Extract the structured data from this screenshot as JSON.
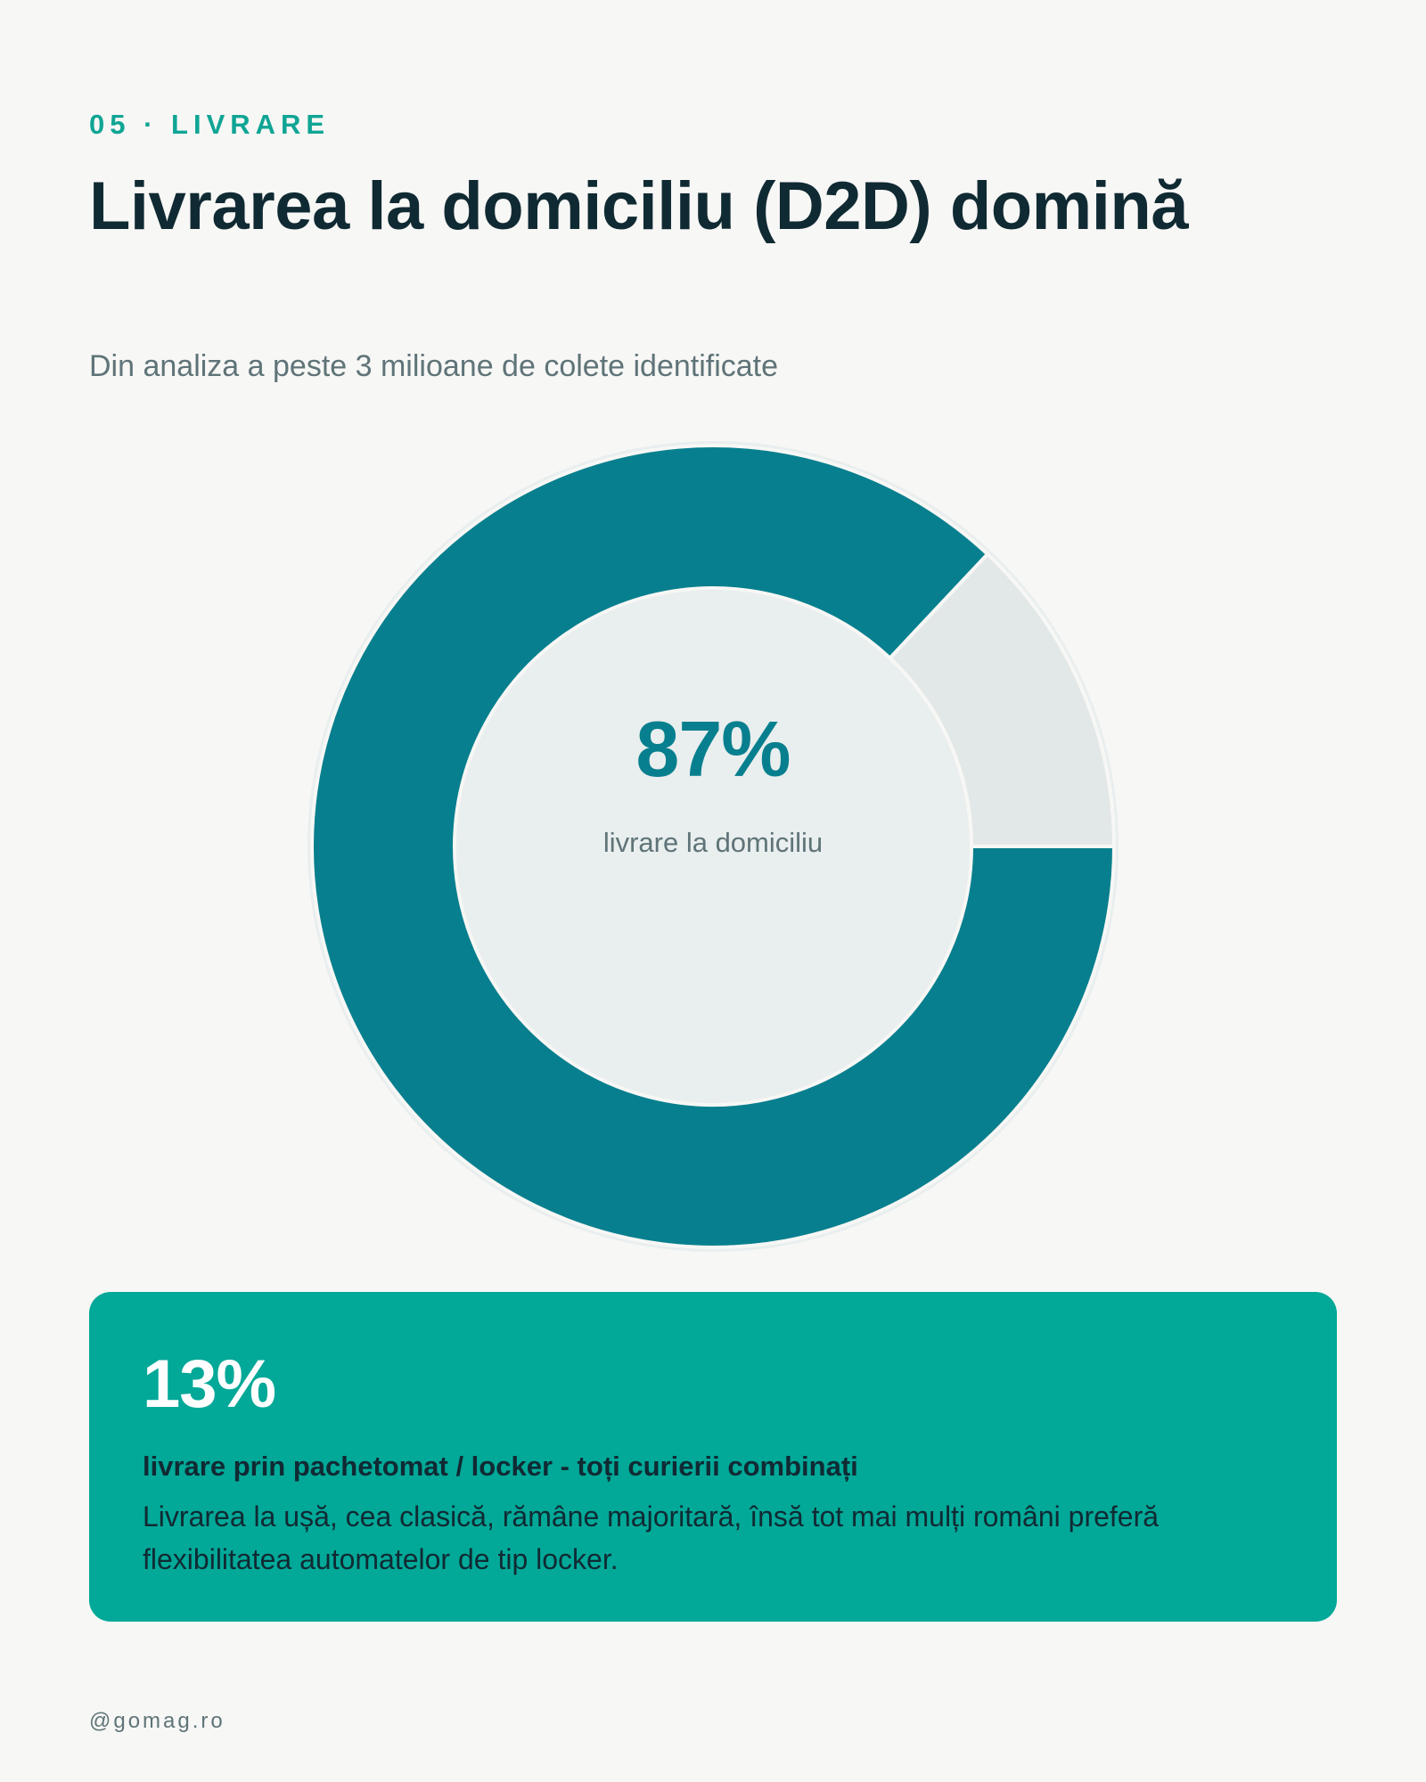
{
  "header": {
    "eyebrow": "05 · LIVRARE",
    "title": "Livrarea la domiciliu (D2D) domină",
    "subtitle": "Din analiza a peste 3 milioane de colete identificate"
  },
  "chart_data": {
    "type": "pie",
    "title": "",
    "slices": [
      {
        "label": "livrare la domiciliu",
        "value": 87,
        "color": "#077f8e"
      },
      {
        "label": "livrare prin pachetomat / locker - toți curierii combinați",
        "value": 13,
        "color": "#e2e8e8"
      }
    ],
    "center_value": "87%",
    "center_label": "livrare la domiciliu"
  },
  "highlight": {
    "value": "13%",
    "heading": "livrare prin pachetomat / locker - toți curierii combinați",
    "text": "Livrarea la ușă, cea clasică, rămâne majoritară, însă tot mai mulți români preferă flexibilitatea automatelor de tip locker."
  },
  "footer": {
    "handle": "@gomag.ro"
  },
  "colors": {
    "background": "#f7f7f5",
    "accent": "#0fa595",
    "primary": "#077f8e",
    "secondary": "#e2e8e8",
    "card": "#02a898",
    "text_dark": "#102a33",
    "text_muted": "#5f7478"
  }
}
